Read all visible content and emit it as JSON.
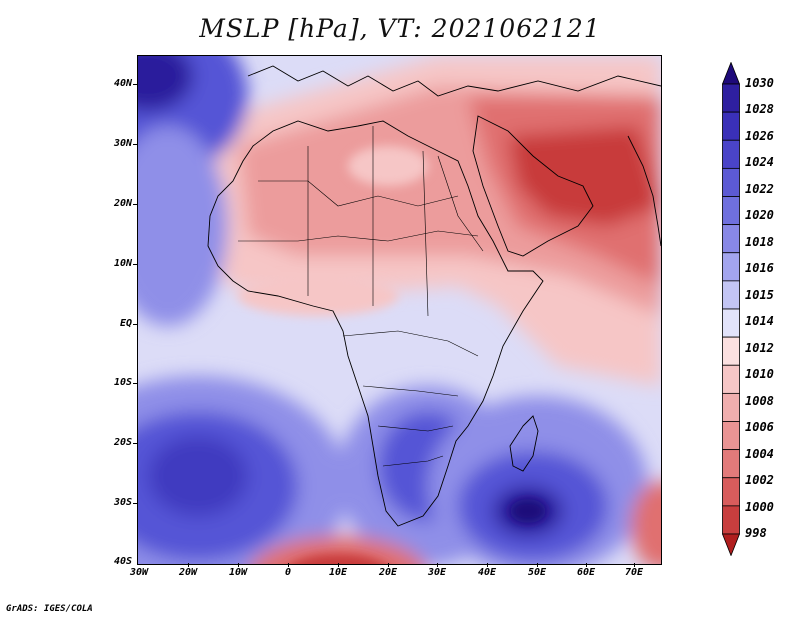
{
  "title": "MSLP [hPa], VT: 2021062121",
  "credit": "GrADS: IGES/COLA",
  "map": {
    "lat_labels": [
      "40N",
      "30N",
      "20N",
      "10N",
      "EQ",
      "10S",
      "20S",
      "30S",
      "40S"
    ],
    "lon_labels": [
      "30W",
      "20W",
      "10W",
      "0",
      "10E",
      "20E",
      "30E",
      "40E",
      "50E",
      "60E",
      "70E"
    ],
    "colors": {
      "very_high": "#2a1a9c",
      "high": "#5555d6",
      "mid_high": "#8f8fe8",
      "light_high": "#c8c8f4",
      "neutral": "#f4f4fa",
      "light_low": "#f6c6c6",
      "mid_low": "#ec9c9c",
      "low": "#e07070",
      "very_low": "#c83a3a",
      "coast": "#000000"
    }
  },
  "colorbar": {
    "labels": [
      "1030",
      "1028",
      "1026",
      "1024",
      "1022",
      "1020",
      "1018",
      "1016",
      "1015",
      "1014",
      "1012",
      "1010",
      "1008",
      "1006",
      "1004",
      "1002",
      "1000",
      "998"
    ],
    "colors": [
      "#1e0a7a",
      "#2e1fa0",
      "#3a30b8",
      "#4a44c8",
      "#5c5ad4",
      "#6f70de",
      "#8888e6",
      "#a3a5ee",
      "#c3c5f4",
      "#e2e3fa",
      "#fbe0e0",
      "#f6c6c6",
      "#f0aeae",
      "#ea9494",
      "#e27a7a",
      "#d85c5c",
      "#c83e3e",
      "#b01e1e"
    ]
  }
}
